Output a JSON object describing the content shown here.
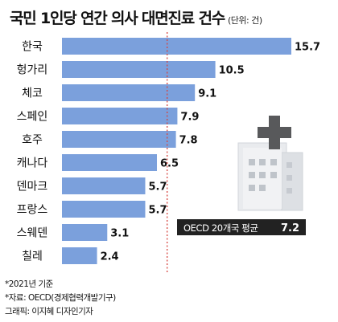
{
  "title": "국민 1인당 연간 의사 대면진료 건수",
  "unit_note": "(단위: 건)",
  "chart_data": {
    "type": "bar",
    "orientation": "horizontal",
    "title": "국민 1인당 연간 의사 대면진료 건수",
    "unit": "건",
    "categories": [
      "한국",
      "헝가리",
      "체코",
      "스페인",
      "호주",
      "캐나다",
      "덴마크",
      "프랑스",
      "스웨덴",
      "칠레"
    ],
    "values": [
      15.7,
      10.5,
      9.1,
      7.9,
      7.8,
      6.5,
      5.7,
      5.7,
      3.1,
      2.4
    ],
    "value_labels": [
      "15.7",
      "10.5",
      "9.1",
      "7.9",
      "7.8",
      "6.5",
      "5.7",
      "5.7",
      "3.1",
      "2.4"
    ],
    "xlim": [
      0,
      15.7
    ],
    "grid": false,
    "reference_line": {
      "value": 7.2,
      "label": "OECD 20개국 평균",
      "value_label": "7.2",
      "style": "dotted"
    },
    "bar_color": "#7ba0dc",
    "reference_color": "#d6453f"
  },
  "icon": "hospital-icon",
  "colors": {
    "bar": "#7ba0dc",
    "reference": "#d6453f",
    "label_box": "#222222",
    "icon": "#e9ebee"
  },
  "footnotes": [
    "*2021년 기준",
    "*자료: OECD(경제협력개발기구)",
    "그래픽: 이지혜 디자인기자"
  ]
}
